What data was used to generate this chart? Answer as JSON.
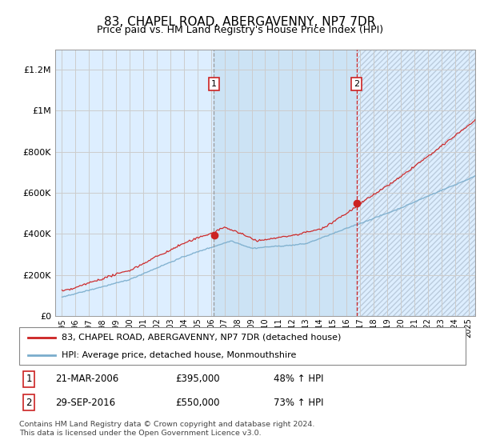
{
  "title": "83, CHAPEL ROAD, ABERGAVENNY, NP7 7DR",
  "subtitle": "Price paid vs. HM Land Registry's House Price Index (HPI)",
  "ylabel_ticks": [
    "£0",
    "£200K",
    "£400K",
    "£600K",
    "£800K",
    "£1M",
    "£1.2M"
  ],
  "ytick_values": [
    0,
    200000,
    400000,
    600000,
    800000,
    1000000,
    1200000
  ],
  "ylim": [
    0,
    1300000
  ],
  "xlim_start": 1994.5,
  "xlim_end": 2025.5,
  "purchase1_date": 2006.22,
  "purchase1_price": 395000,
  "purchase1_label": "1",
  "purchase2_date": 2016.75,
  "purchase2_price": 550000,
  "purchase2_label": "2",
  "legend_line1": "83, CHAPEL ROAD, ABERGAVENNY, NP7 7DR (detached house)",
  "legend_line2": "HPI: Average price, detached house, Monmouthshire",
  "table_row1": [
    "1",
    "21-MAR-2006",
    "£395,000",
    "48% ↑ HPI"
  ],
  "table_row2": [
    "2",
    "29-SEP-2016",
    "£550,000",
    "73% ↑ HPI"
  ],
  "footnote": "Contains HM Land Registry data © Crown copyright and database right 2024.\nThis data is licensed under the Open Government Licence v3.0.",
  "red_color": "#cc2222",
  "blue_color": "#7aadcc",
  "vline1_color": "#aaaaaa",
  "vline2_color": "#cc2222",
  "bg_color": "#ddeeff",
  "span_color": "#cce3f5",
  "grid_color": "#cccccc",
  "title_fontsize": 11,
  "subtitle_fontsize": 9
}
